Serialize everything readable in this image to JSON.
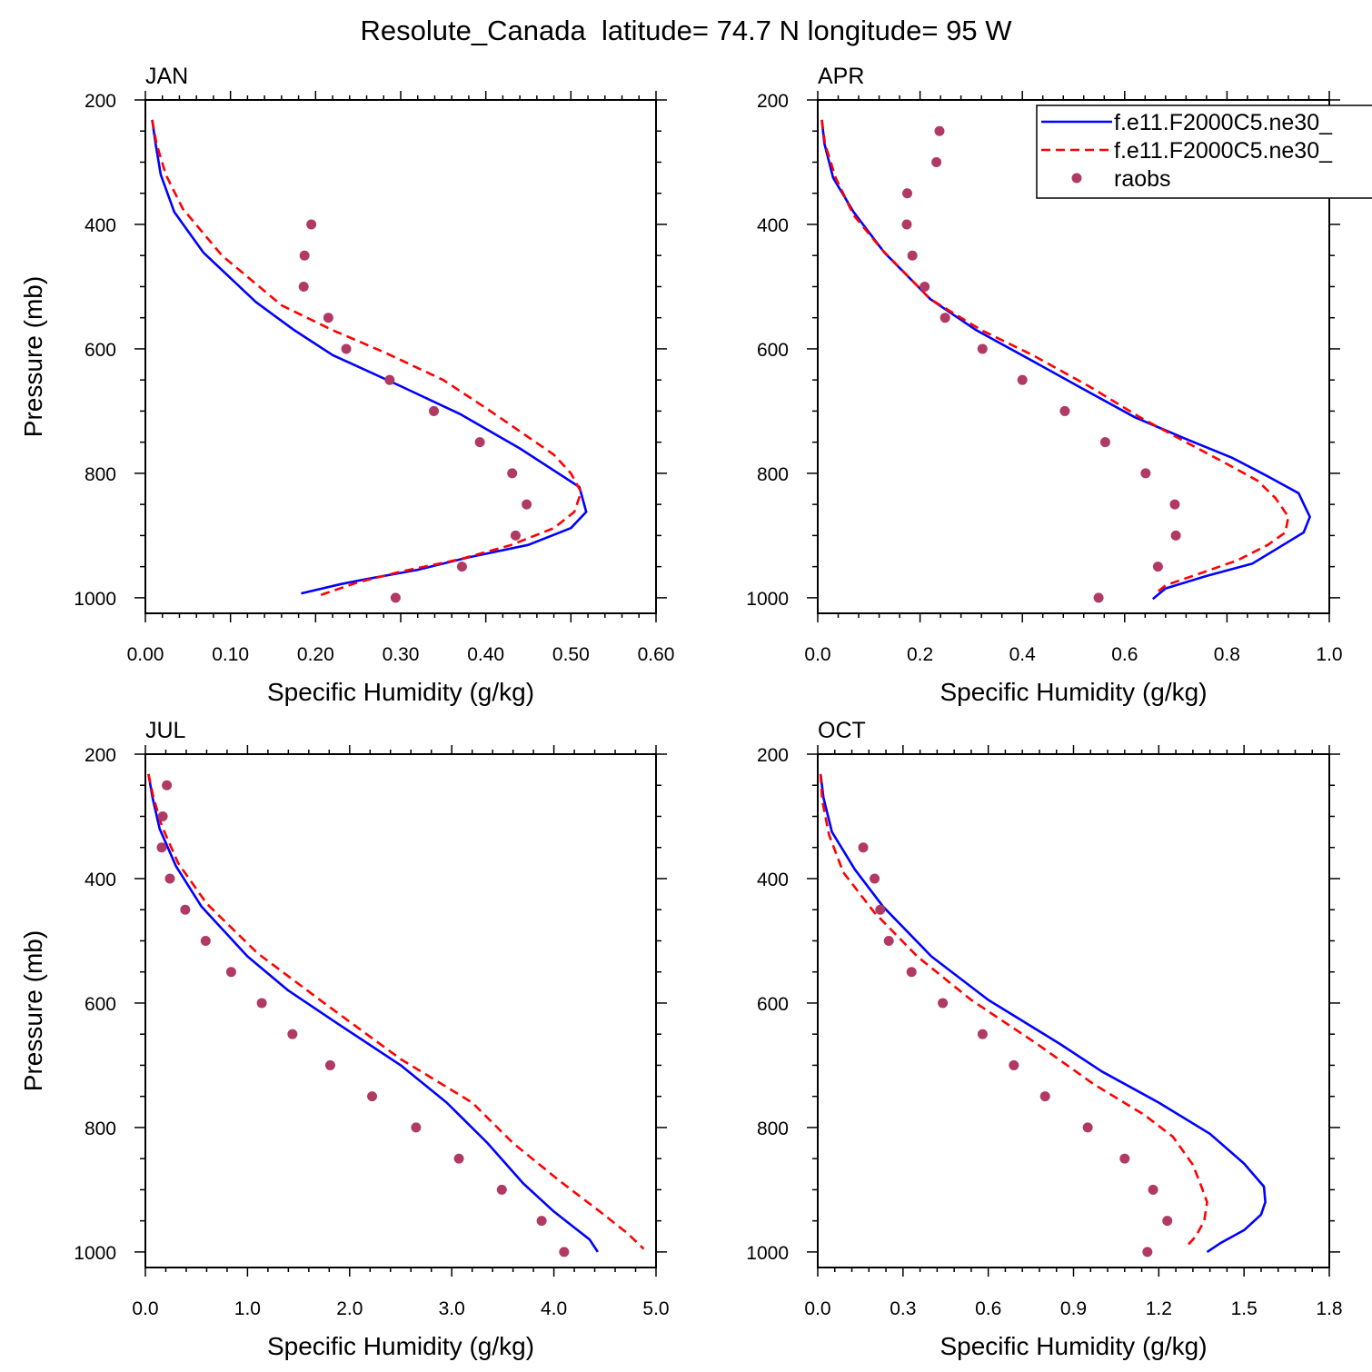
{
  "title": "Resolute_Canada  latitude= 74.7 N longitude= 95 W",
  "colors": {
    "model1": "#0000ff",
    "model2": "#ff0000",
    "obs": "#b03a64"
  },
  "legend": {
    "placement": "top-right of APR panel",
    "items": [
      {
        "label": "f.e11.F2000C5.ne30_",
        "style": "solid",
        "color": "#0000ff"
      },
      {
        "label": "f.e11.F2000C5.ne30_",
        "style": "dashed",
        "color": "#ff0000"
      },
      {
        "label": "raobs",
        "style": "dot",
        "color": "#b03a64"
      }
    ]
  },
  "chart_data": [
    {
      "type": "line",
      "title": "JAN",
      "xlabel": "Specific Humidity (g/kg)",
      "ylabel": "Pressure (mb)",
      "xlim": [
        0,
        0.6
      ],
      "xticks": [
        "0.00",
        "0.10",
        "0.20",
        "0.30",
        "0.40",
        "0.50",
        "0.60"
      ],
      "ylim": [
        200,
        1025
      ],
      "yticks": [
        "200",
        "400",
        "600",
        "800",
        "1000"
      ],
      "series": [
        {
          "name": "f.e11.F2000C5.ne30_",
          "style": "solid",
          "points": [
            [
              0.008,
              232
            ],
            [
              0.012,
              270
            ],
            [
              0.018,
              320
            ],
            [
              0.034,
              380
            ],
            [
              0.068,
              445
            ],
            [
              0.13,
              525
            ],
            [
              0.175,
              570
            ],
            [
              0.22,
              610
            ],
            [
              0.3,
              660
            ],
            [
              0.37,
              705
            ],
            [
              0.44,
              760
            ],
            [
              0.51,
              822
            ],
            [
              0.518,
              862
            ],
            [
              0.5,
              888
            ],
            [
              0.45,
              915
            ],
            [
              0.38,
              935
            ],
            [
              0.32,
              955
            ],
            [
              0.26,
              970
            ],
            [
              0.23,
              978
            ],
            [
              0.183,
              993
            ]
          ]
        },
        {
          "name": "f.e11.F2000C5.ne30_",
          "style": "dashed",
          "points": [
            [
              0.008,
              232
            ],
            [
              0.013,
              270
            ],
            [
              0.024,
              320
            ],
            [
              0.044,
              375
            ],
            [
              0.09,
              450
            ],
            [
              0.16,
              530
            ],
            [
              0.22,
              570
            ],
            [
              0.28,
              605
            ],
            [
              0.35,
              650
            ],
            [
              0.4,
              695
            ],
            [
              0.48,
              770
            ],
            [
              0.5,
              800
            ],
            [
              0.512,
              830
            ],
            [
              0.504,
              862
            ],
            [
              0.48,
              888
            ],
            [
              0.43,
              915
            ],
            [
              0.37,
              938
            ],
            [
              0.3,
              958
            ],
            [
              0.25,
              975
            ],
            [
              0.203,
              997
            ]
          ]
        },
        {
          "name": "raobs",
          "style": "dots",
          "points": [
            [
              0.195,
              400
            ],
            [
              0.187,
              450
            ],
            [
              0.186,
              500
            ],
            [
              0.215,
              550
            ],
            [
              0.236,
              600
            ],
            [
              0.287,
              650
            ],
            [
              0.339,
              700
            ],
            [
              0.393,
              750
            ],
            [
              0.431,
              800
            ],
            [
              0.448,
              850
            ],
            [
              0.435,
              900
            ],
            [
              0.372,
              950
            ],
            [
              0.294,
              1000
            ]
          ]
        }
      ]
    },
    {
      "type": "line",
      "title": "APR",
      "xlabel": "Specific Humidity (g/kg)",
      "ylabel": "",
      "xlim": [
        0,
        1.0
      ],
      "xticks": [
        "0.0",
        "0.2",
        "0.4",
        "0.6",
        "0.8",
        "1.0"
      ],
      "ylim": [
        200,
        1025
      ],
      "yticks": [
        "200",
        "400",
        "600",
        "800",
        "1000"
      ],
      "series": [
        {
          "name": "f.e11.F2000C5.ne30_",
          "style": "solid",
          "points": [
            [
              0.008,
              232
            ],
            [
              0.013,
              270
            ],
            [
              0.03,
              325
            ],
            [
              0.07,
              380
            ],
            [
              0.13,
              445
            ],
            [
              0.22,
              520
            ],
            [
              0.31,
              570
            ],
            [
              0.41,
              615
            ],
            [
              0.52,
              665
            ],
            [
              0.62,
              710
            ],
            [
              0.72,
              745
            ],
            [
              0.81,
              775
            ],
            [
              0.88,
              805
            ],
            [
              0.94,
              832
            ],
            [
              0.962,
              870
            ],
            [
              0.95,
              895
            ],
            [
              0.91,
              915
            ],
            [
              0.85,
              945
            ],
            [
              0.76,
              965
            ],
            [
              0.68,
              985
            ],
            [
              0.655,
              1002
            ]
          ]
        },
        {
          "name": "f.e11.F2000C5.ne30_",
          "style": "dashed",
          "points": [
            [
              0.008,
              232
            ],
            [
              0.014,
              270
            ],
            [
              0.035,
              325
            ],
            [
              0.07,
              385
            ],
            [
              0.125,
              440
            ],
            [
              0.22,
              520
            ],
            [
              0.32,
              570
            ],
            [
              0.42,
              610
            ],
            [
              0.53,
              660
            ],
            [
              0.63,
              710
            ],
            [
              0.72,
              750
            ],
            [
              0.8,
              785
            ],
            [
              0.86,
              812
            ],
            [
              0.895,
              840
            ],
            [
              0.92,
              870
            ],
            [
              0.914,
              895
            ],
            [
              0.88,
              915
            ],
            [
              0.82,
              940
            ],
            [
              0.74,
              963
            ],
            [
              0.68,
              980
            ],
            [
              0.665,
              990
            ]
          ]
        },
        {
          "name": "raobs",
          "style": "dots",
          "points": [
            [
              0.238,
              250
            ],
            [
              0.232,
              300
            ],
            [
              0.175,
              350
            ],
            [
              0.174,
              400
            ],
            [
              0.185,
              450
            ],
            [
              0.209,
              500
            ],
            [
              0.249,
              550
            ],
            [
              0.322,
              600
            ],
            [
              0.4,
              650
            ],
            [
              0.483,
              700
            ],
            [
              0.562,
              750
            ],
            [
              0.641,
              800
            ],
            [
              0.698,
              850
            ],
            [
              0.7,
              900
            ],
            [
              0.665,
              950
            ],
            [
              0.549,
              1000
            ]
          ]
        }
      ]
    },
    {
      "type": "line",
      "title": "JUL",
      "xlabel": "Specific Humidity (g/kg)",
      "ylabel": "Pressure (mb)",
      "xlim": [
        0,
        5.0
      ],
      "xticks": [
        "0.0",
        "1.0",
        "2.0",
        "3.0",
        "4.0",
        "5.0"
      ],
      "ylim": [
        200,
        1025
      ],
      "yticks": [
        "200",
        "400",
        "600",
        "800",
        "1000"
      ],
      "series": [
        {
          "name": "f.e11.F2000C5.ne30_",
          "style": "solid",
          "points": [
            [
              0.03,
              232
            ],
            [
              0.07,
              270
            ],
            [
              0.14,
              320
            ],
            [
              0.3,
              380
            ],
            [
              0.55,
              445
            ],
            [
              1.0,
              525
            ],
            [
              1.4,
              580
            ],
            [
              1.9,
              635
            ],
            [
              2.5,
              700
            ],
            [
              2.95,
              760
            ],
            [
              3.35,
              825
            ],
            [
              3.7,
              890
            ],
            [
              4.0,
              935
            ],
            [
              4.35,
              980
            ],
            [
              4.43,
              1000
            ]
          ]
        },
        {
          "name": "f.e11.F2000C5.ne30_",
          "style": "dashed",
          "points": [
            [
              0.03,
              232
            ],
            [
              0.08,
              270
            ],
            [
              0.16,
              315
            ],
            [
              0.32,
              375
            ],
            [
              0.6,
              440
            ],
            [
              1.1,
              520
            ],
            [
              1.75,
              600
            ],
            [
              2.5,
              690
            ],
            [
              3.2,
              760
            ],
            [
              3.6,
              825
            ],
            [
              4.05,
              885
            ],
            [
              4.45,
              935
            ],
            [
              4.72,
              970
            ],
            [
              4.88,
              995
            ]
          ]
        },
        {
          "name": "raobs",
          "style": "dots",
          "points": [
            [
              0.21,
              250
            ],
            [
              0.17,
              300
            ],
            [
              0.16,
              350
            ],
            [
              0.24,
              400
            ],
            [
              0.39,
              450
            ],
            [
              0.59,
              500
            ],
            [
              0.84,
              550
            ],
            [
              1.14,
              600
            ],
            [
              1.44,
              650
            ],
            [
              1.81,
              700
            ],
            [
              2.22,
              750
            ],
            [
              2.65,
              800
            ],
            [
              3.07,
              850
            ],
            [
              3.49,
              900
            ],
            [
              3.88,
              950
            ],
            [
              4.1,
              1000
            ]
          ]
        }
      ]
    },
    {
      "type": "line",
      "title": "OCT",
      "xlabel": "Specific Humidity (g/kg)",
      "ylabel": "",
      "xlim": [
        0,
        1.8
      ],
      "xticks": [
        "0.0",
        "0.3",
        "0.6",
        "0.9",
        "1.2",
        "1.5",
        "1.8"
      ],
      "ylim": [
        200,
        1025
      ],
      "yticks": [
        "200",
        "400",
        "600",
        "800",
        "1000"
      ],
      "series": [
        {
          "name": "f.e11.F2000C5.ne30_",
          "style": "solid",
          "points": [
            [
              0.01,
              232
            ],
            [
              0.02,
              270
            ],
            [
              0.05,
              325
            ],
            [
              0.13,
              385
            ],
            [
              0.23,
              445
            ],
            [
              0.4,
              525
            ],
            [
              0.6,
              595
            ],
            [
              0.85,
              665
            ],
            [
              1.0,
              710
            ],
            [
              1.2,
              760
            ],
            [
              1.38,
              810
            ],
            [
              1.5,
              858
            ],
            [
              1.57,
              895
            ],
            [
              1.575,
              920
            ],
            [
              1.56,
              940
            ],
            [
              1.5,
              965
            ],
            [
              1.42,
              985
            ],
            [
              1.37,
              1000
            ]
          ]
        },
        {
          "name": "f.e11.F2000C5.ne30_",
          "style": "dashed",
          "points": [
            [
              0.01,
              232
            ],
            [
              0.016,
              275
            ],
            [
              0.04,
              330
            ],
            [
              0.09,
              390
            ],
            [
              0.2,
              455
            ],
            [
              0.35,
              525
            ],
            [
              0.54,
              595
            ],
            [
              0.77,
              665
            ],
            [
              0.97,
              730
            ],
            [
              1.15,
              780
            ],
            [
              1.25,
              815
            ],
            [
              1.32,
              860
            ],
            [
              1.35,
              895
            ],
            [
              1.37,
              920
            ],
            [
              1.36,
              950
            ],
            [
              1.33,
              975
            ],
            [
              1.3,
              990
            ]
          ]
        },
        {
          "name": "raobs",
          "style": "dots",
          "points": [
            [
              0.16,
              350
            ],
            [
              0.2,
              400
            ],
            [
              0.22,
              450
            ],
            [
              0.25,
              500
            ],
            [
              0.33,
              550
            ],
            [
              0.44,
              600
            ],
            [
              0.58,
              650
            ],
            [
              0.69,
              700
            ],
            [
              0.8,
              750
            ],
            [
              0.95,
              800
            ],
            [
              1.08,
              850
            ],
            [
              1.18,
              900
            ],
            [
              1.23,
              950
            ],
            [
              1.16,
              1000
            ]
          ]
        }
      ]
    }
  ]
}
